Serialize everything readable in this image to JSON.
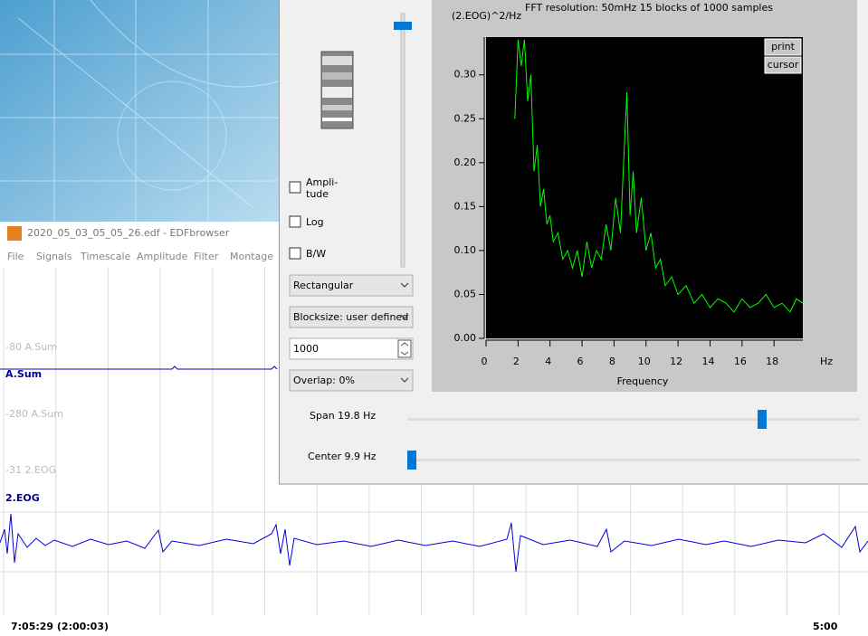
{
  "window": {
    "title": "2020_05_03_05_05_26.edf - EDFbrowser",
    "menu": [
      "File",
      "Signals",
      "Timescale",
      "Amplitude",
      "Filter",
      "Montage"
    ]
  },
  "signals": {
    "labels": [
      "-80 A.Sum",
      "A.Sum",
      "-280 A.Sum",
      "-31 2.EOG",
      "2.EOG"
    ],
    "time_left": "7:05:29 (2:00:03)",
    "time_right": "5:00"
  },
  "dialog": {
    "checkboxes": [
      "Ampli-\ntude",
      "Log",
      "B/W"
    ],
    "window_function": "Rectangular",
    "blocksize": "Blocksize: user defined",
    "samples": "1000",
    "overlap": "Overlap: 0%",
    "span": "Span 19.8 Hz",
    "center": "Center 9.9 Hz",
    "buttons": [
      "print",
      "cursor"
    ]
  },
  "chart_data": {
    "type": "line",
    "title": "FFT resolution: 50mHz   15 blocks of 1000 samples",
    "y_label": "(2.EOG)^2/Hz",
    "x_label": "Frequency",
    "x_unit": "Hz",
    "color": "#00ff00",
    "x": [
      1.8,
      2.0,
      2.2,
      2.4,
      2.6,
      2.8,
      3.0,
      3.2,
      3.4,
      3.6,
      3.8,
      4.0,
      4.2,
      4.5,
      4.8,
      5.1,
      5.4,
      5.7,
      6.0,
      6.3,
      6.6,
      6.9,
      7.2,
      7.5,
      7.8,
      8.1,
      8.4,
      8.6,
      8.8,
      9.0,
      9.2,
      9.4,
      9.7,
      10.0,
      10.3,
      10.6,
      10.9,
      11.2,
      11.6,
      12.0,
      12.5,
      13.0,
      13.5,
      14.0,
      14.5,
      15.0,
      15.5,
      16.0,
      16.5,
      17.0,
      17.5,
      18.0,
      18.5,
      19.0,
      19.4,
      19.8
    ],
    "values": [
      0.25,
      0.34,
      0.31,
      0.34,
      0.27,
      0.3,
      0.19,
      0.22,
      0.15,
      0.17,
      0.13,
      0.14,
      0.11,
      0.12,
      0.09,
      0.1,
      0.08,
      0.1,
      0.07,
      0.11,
      0.08,
      0.1,
      0.09,
      0.13,
      0.1,
      0.16,
      0.12,
      0.2,
      0.28,
      0.14,
      0.19,
      0.12,
      0.16,
      0.1,
      0.12,
      0.08,
      0.09,
      0.06,
      0.07,
      0.05,
      0.06,
      0.04,
      0.05,
      0.035,
      0.045,
      0.04,
      0.03,
      0.045,
      0.035,
      0.04,
      0.05,
      0.035,
      0.04,
      0.03,
      0.045,
      0.04
    ],
    "xlim": [
      0,
      19.8
    ],
    "ylim": [
      0,
      0.343
    ],
    "xticks": [
      0,
      2,
      4,
      6,
      8,
      10,
      12,
      14,
      16,
      18
    ],
    "yticks": [
      {
        "value": 0,
        "label": "0.00"
      },
      {
        "value": 0.05,
        "label": "0.05"
      },
      {
        "value": 0.1,
        "label": "0.10"
      },
      {
        "value": 0.15,
        "label": "0.15"
      },
      {
        "value": 0.2,
        "label": "0.20"
      },
      {
        "value": 0.25,
        "label": "0.25"
      },
      {
        "value": 0.3,
        "label": "0.30"
      }
    ]
  }
}
